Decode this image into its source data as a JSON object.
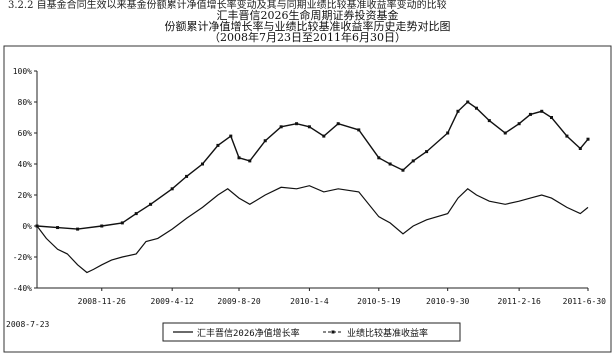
{
  "headings": [
    "3.2.2 自基金合同生效以来基金份额累计净值增长率变动及其与同期业绩比较基准收益率变动的比较",
    "汇丰晋信2026生命周期证券投资基金",
    "份额累计净值增长率与业绩比较基准收益率历史走势对比图",
    "（2008年7月23日至2011年6月30日）"
  ],
  "chart_data": {
    "type": "line",
    "title": "",
    "xlabel": "",
    "ylabel": "",
    "ylim": [
      -40,
      100
    ],
    "y_ticks": [
      "100%",
      "80%",
      "60%",
      "40%",
      "20%",
      "0%",
      "-20%",
      "-40%"
    ],
    "y_tick_values": [
      100,
      80,
      60,
      40,
      20,
      0,
      -20,
      -40
    ],
    "x_range": [
      "2008-07-23",
      "2011-06-30"
    ],
    "x_start_label": "2008-7-23",
    "x_ticks": [
      "2008-11-26",
      "2009-4-12",
      "2009-8-20",
      "2010-1-4",
      "2010-5-19",
      "2010-9-30",
      "2011-2-16",
      "2011-6-30"
    ],
    "x_tick_dates": [
      "2008-11-26",
      "2009-04-12",
      "2009-08-20",
      "2010-01-04",
      "2010-05-19",
      "2010-09-30",
      "2011-02-16",
      "2011-06-30"
    ],
    "grid": false,
    "legend_position": "bottom",
    "series": [
      {
        "name": "汇丰晋信2026净值增长率",
        "color": "#111111",
        "style": "solid",
        "points": [
          [
            "2008-07-23",
            0
          ],
          [
            "2008-08-10",
            -8
          ],
          [
            "2008-09-01",
            -15
          ],
          [
            "2008-09-20",
            -18
          ],
          [
            "2008-10-10",
            -25
          ],
          [
            "2008-10-28",
            -30
          ],
          [
            "2008-11-10",
            -28
          ],
          [
            "2008-11-26",
            -25
          ],
          [
            "2008-12-15",
            -22
          ],
          [
            "2009-01-05",
            -20
          ],
          [
            "2009-02-01",
            -18
          ],
          [
            "2009-02-20",
            -10
          ],
          [
            "2009-03-15",
            -8
          ],
          [
            "2009-04-12",
            -2
          ],
          [
            "2009-05-10",
            5
          ],
          [
            "2009-06-10",
            12
          ],
          [
            "2009-07-10",
            20
          ],
          [
            "2009-07-29",
            24
          ],
          [
            "2009-08-20",
            18
          ],
          [
            "2009-09-10",
            14
          ],
          [
            "2009-10-10",
            20
          ],
          [
            "2009-11-10",
            25
          ],
          [
            "2009-12-10",
            24
          ],
          [
            "2010-01-04",
            26
          ],
          [
            "2010-02-01",
            22
          ],
          [
            "2010-03-01",
            24
          ],
          [
            "2010-04-10",
            22
          ],
          [
            "2010-05-19",
            6
          ],
          [
            "2010-06-10",
            2
          ],
          [
            "2010-07-05",
            -5
          ],
          [
            "2010-07-25",
            0
          ],
          [
            "2010-08-20",
            4
          ],
          [
            "2010-09-30",
            8
          ],
          [
            "2010-10-20",
            18
          ],
          [
            "2010-11-08",
            24
          ],
          [
            "2010-11-25",
            20
          ],
          [
            "2010-12-20",
            16
          ],
          [
            "2011-01-20",
            14
          ],
          [
            "2011-02-16",
            16
          ],
          [
            "2011-03-10",
            18
          ],
          [
            "2011-04-01",
            20
          ],
          [
            "2011-04-20",
            18
          ],
          [
            "2011-05-20",
            12
          ],
          [
            "2011-06-15",
            8
          ],
          [
            "2011-06-30",
            12
          ]
        ]
      },
      {
        "name": "业绩比较基准收益率",
        "color": "#111111",
        "style": "dashed-marker",
        "points": [
          [
            "2008-07-23",
            0
          ],
          [
            "2008-09-01",
            -1
          ],
          [
            "2008-10-10",
            -2
          ],
          [
            "2008-11-26",
            0
          ],
          [
            "2009-01-05",
            2
          ],
          [
            "2009-02-01",
            8
          ],
          [
            "2009-03-01",
            14
          ],
          [
            "2009-04-12",
            24
          ],
          [
            "2009-05-10",
            32
          ],
          [
            "2009-06-10",
            40
          ],
          [
            "2009-07-10",
            52
          ],
          [
            "2009-08-04",
            58
          ],
          [
            "2009-08-20",
            44
          ],
          [
            "2009-09-10",
            42
          ],
          [
            "2009-10-10",
            55
          ],
          [
            "2009-11-10",
            64
          ],
          [
            "2009-12-10",
            66
          ],
          [
            "2010-01-04",
            64
          ],
          [
            "2010-02-01",
            58
          ],
          [
            "2010-03-01",
            66
          ],
          [
            "2010-04-10",
            62
          ],
          [
            "2010-05-19",
            44
          ],
          [
            "2010-06-10",
            40
          ],
          [
            "2010-07-05",
            36
          ],
          [
            "2010-07-25",
            42
          ],
          [
            "2010-08-20",
            48
          ],
          [
            "2010-09-30",
            60
          ],
          [
            "2010-10-20",
            74
          ],
          [
            "2010-11-08",
            80
          ],
          [
            "2010-11-25",
            76
          ],
          [
            "2010-12-20",
            68
          ],
          [
            "2011-01-20",
            60
          ],
          [
            "2011-02-16",
            66
          ],
          [
            "2011-03-10",
            72
          ],
          [
            "2011-04-01",
            74
          ],
          [
            "2011-04-20",
            70
          ],
          [
            "2011-05-20",
            58
          ],
          [
            "2011-06-15",
            50
          ],
          [
            "2011-06-30",
            56
          ]
        ]
      }
    ]
  }
}
